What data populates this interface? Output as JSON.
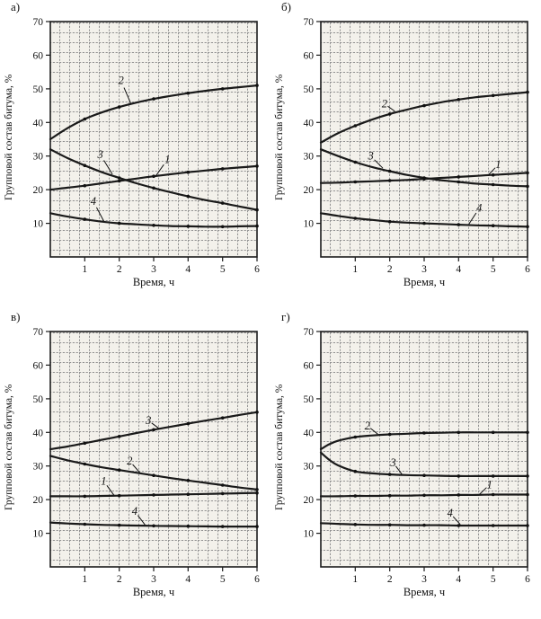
{
  "style": {
    "paper_color": "#f3f1eb",
    "grid_color": "#929292",
    "curve_color": "#1a1a1a",
    "axis_color": "#1c1c1c"
  },
  "panels": [
    {
      "letter": "а)",
      "ylabel": "Групповой состав битума, %",
      "xlabel": "Время, ч"
    },
    {
      "letter": "б)",
      "ylabel": "Групповой состав битума, %",
      "xlabel": "Время, ч"
    },
    {
      "letter": "в)",
      "ylabel": "Групповой состав битума, %",
      "xlabel": "Время, ч"
    },
    {
      "letter": "г)",
      "ylabel": "Групповой состав битума, %",
      "xlabel": "Время, ч"
    }
  ],
  "chart_data": [
    {
      "type": "line",
      "panel": "а)",
      "xlabel": "Время, ч",
      "ylabel": "Групповой состав битума, %",
      "xlim": [
        0,
        6
      ],
      "ylim": [
        0,
        70
      ],
      "x_ticks": [
        1,
        2,
        3,
        4,
        5,
        6
      ],
      "y_ticks": [
        10,
        20,
        30,
        40,
        50,
        60,
        70
      ],
      "grid": true,
      "series": [
        {
          "name": "2",
          "points": [
            [
              0,
              35
            ],
            [
              0.5,
              38.3
            ],
            [
              1,
              41
            ],
            [
              1.5,
              43
            ],
            [
              2,
              44.6
            ],
            [
              2.5,
              45.9
            ],
            [
              3,
              47
            ],
            [
              3.5,
              47.9
            ],
            [
              4,
              48.7
            ],
            [
              4.5,
              49.4
            ],
            [
              5,
              50
            ],
            [
              5.5,
              50.5
            ],
            [
              6,
              51
            ]
          ],
          "label_at": [
            2.05,
            52.5
          ],
          "leader_to": [
            2.35,
            45.3
          ]
        },
        {
          "name": "3",
          "points": [
            [
              0,
              32
            ],
            [
              0.5,
              29.4
            ],
            [
              1,
              27.2
            ],
            [
              1.5,
              25.2
            ],
            [
              2,
              23.5
            ],
            [
              2.5,
              21.9
            ],
            [
              3,
              20.5
            ],
            [
              3.5,
              19.2
            ],
            [
              4,
              18
            ],
            [
              4.5,
              16.9
            ],
            [
              5,
              16
            ],
            [
              5.5,
              15
            ],
            [
              6,
              14
            ]
          ],
          "label_at": [
            1.45,
            30.5
          ],
          "leader_to": [
            1.8,
            24.6
          ]
        },
        {
          "name": "1",
          "points": [
            [
              0,
              20
            ],
            [
              0.5,
              20.6
            ],
            [
              1,
              21.2
            ],
            [
              1.5,
              21.9
            ],
            [
              2,
              22.6
            ],
            [
              2.5,
              23.3
            ],
            [
              3,
              24
            ],
            [
              3.5,
              24.6
            ],
            [
              4,
              25.2
            ],
            [
              4.5,
              25.7
            ],
            [
              5,
              26.2
            ],
            [
              5.5,
              26.6
            ],
            [
              6,
              27
            ]
          ],
          "label_at": [
            3.4,
            29
          ],
          "leader_to": [
            3.05,
            23.9
          ]
        },
        {
          "name": "4",
          "points": [
            [
              0,
              13
            ],
            [
              0.5,
              12
            ],
            [
              1,
              11.2
            ],
            [
              1.5,
              10.5
            ],
            [
              2,
              10
            ],
            [
              2.5,
              9.7
            ],
            [
              3,
              9.4
            ],
            [
              3.5,
              9.2
            ],
            [
              4,
              9.1
            ],
            [
              4.5,
              9
            ],
            [
              5,
              9
            ],
            [
              5.5,
              9.1
            ],
            [
              6,
              9.2
            ]
          ],
          "label_at": [
            1.25,
            16.5
          ],
          "leader_to": [
            1.55,
            10.7
          ]
        }
      ]
    },
    {
      "type": "line",
      "panel": "б)",
      "xlabel": "Время, ч",
      "ylabel": "Групповой состав битума, %",
      "xlim": [
        0,
        6
      ],
      "ylim": [
        0,
        70
      ],
      "x_ticks": [
        1,
        2,
        3,
        4,
        5,
        6
      ],
      "y_ticks": [
        10,
        20,
        30,
        40,
        50,
        60,
        70
      ],
      "grid": true,
      "series": [
        {
          "name": "2",
          "points": [
            [
              0,
              34
            ],
            [
              0.5,
              36.8
            ],
            [
              1,
              39
            ],
            [
              1.5,
              40.9
            ],
            [
              2,
              42.5
            ],
            [
              2.5,
              43.8
            ],
            [
              3,
              45
            ],
            [
              3.5,
              46
            ],
            [
              4,
              46.8
            ],
            [
              4.5,
              47.5
            ],
            [
              5,
              48
            ],
            [
              5.5,
              48.5
            ],
            [
              6,
              49
            ]
          ],
          "label_at": [
            1.85,
            45.5
          ],
          "leader_to": [
            2.15,
            43.3
          ]
        },
        {
          "name": "3",
          "points": [
            [
              0,
              32
            ],
            [
              0.5,
              30
            ],
            [
              1,
              28.2
            ],
            [
              1.5,
              26.7
            ],
            [
              2,
              25.5
            ],
            [
              2.5,
              24.4
            ],
            [
              3,
              23.5
            ],
            [
              3.5,
              22.8
            ],
            [
              4,
              22.3
            ],
            [
              4.5,
              21.8
            ],
            [
              5,
              21.5
            ],
            [
              5.5,
              21.2
            ],
            [
              6,
              21
            ]
          ],
          "label_at": [
            1.45,
            30
          ],
          "leader_to": [
            1.8,
            26.4
          ]
        },
        {
          "name": "1",
          "points": [
            [
              0,
              22
            ],
            [
              0.5,
              22.1
            ],
            [
              1,
              22.3
            ],
            [
              1.5,
              22.5
            ],
            [
              2,
              22.7
            ],
            [
              2.5,
              22.9
            ],
            [
              3,
              23.2
            ],
            [
              3.5,
              23.5
            ],
            [
              4,
              23.8
            ],
            [
              4.5,
              24.1
            ],
            [
              5,
              24.4
            ],
            [
              5.5,
              24.7
            ],
            [
              6,
              25
            ]
          ],
          "label_at": [
            5.15,
            27.5
          ],
          "leader_to": [
            4.85,
            24.2
          ]
        },
        {
          "name": "4",
          "points": [
            [
              0,
              13
            ],
            [
              0.5,
              12.2
            ],
            [
              1,
              11.5
            ],
            [
              1.5,
              11
            ],
            [
              2,
              10.5
            ],
            [
              2.5,
              10.2
            ],
            [
              3,
              10
            ],
            [
              3.5,
              9.8
            ],
            [
              4,
              9.6
            ],
            [
              4.5,
              9.4
            ],
            [
              5,
              9.3
            ],
            [
              5.5,
              9.1
            ],
            [
              6,
              9
            ]
          ],
          "label_at": [
            4.6,
            14.5
          ],
          "leader_to": [
            4.3,
            9.8
          ]
        }
      ]
    },
    {
      "type": "line",
      "panel": "в)",
      "xlabel": "Время, ч",
      "ylabel": "Групповой состав битума, %",
      "xlim": [
        0,
        6
      ],
      "ylim": [
        0,
        70
      ],
      "x_ticks": [
        1,
        2,
        3,
        4,
        5,
        6
      ],
      "y_ticks": [
        10,
        20,
        30,
        40,
        50,
        60,
        70
      ],
      "grid": true,
      "series": [
        {
          "name": "3",
          "points": [
            [
              0,
              35
            ],
            [
              0.5,
              35.8
            ],
            [
              1,
              36.8
            ],
            [
              1.5,
              37.8
            ],
            [
              2,
              38.8
            ],
            [
              2.5,
              39.8
            ],
            [
              3,
              40.8
            ],
            [
              3.5,
              41.7
            ],
            [
              4,
              42.6
            ],
            [
              4.5,
              43.5
            ],
            [
              5,
              44.3
            ],
            [
              5.5,
              45.2
            ],
            [
              6,
              46
            ]
          ],
          "label_at": [
            2.85,
            43.5
          ],
          "leader_to": [
            3.15,
            41.2
          ]
        },
        {
          "name": "2",
          "points": [
            [
              0,
              33
            ],
            [
              0.5,
              31.7
            ],
            [
              1,
              30.6
            ],
            [
              1.5,
              29.6
            ],
            [
              2,
              28.8
            ],
            [
              2.5,
              28
            ],
            [
              3,
              27.2
            ],
            [
              3.5,
              26.4
            ],
            [
              4,
              25.7
            ],
            [
              4.5,
              25
            ],
            [
              5,
              24.3
            ],
            [
              5.5,
              23.6
            ],
            [
              6,
              23
            ]
          ],
          "label_at": [
            2.3,
            31.5
          ],
          "leader_to": [
            2.6,
            28
          ]
        },
        {
          "name": "1",
          "points": [
            [
              0,
              21
            ],
            [
              0.5,
              21
            ],
            [
              1,
              21
            ],
            [
              1.5,
              21.1
            ],
            [
              2,
              21.2
            ],
            [
              2.5,
              21.3
            ],
            [
              3,
              21.4
            ],
            [
              3.5,
              21.5
            ],
            [
              4,
              21.6
            ],
            [
              4.5,
              21.7
            ],
            [
              5,
              21.8
            ],
            [
              5.5,
              21.9
            ],
            [
              6,
              22
            ]
          ],
          "label_at": [
            1.55,
            25.5
          ],
          "leader_to": [
            1.85,
            21.3
          ]
        },
        {
          "name": "4",
          "points": [
            [
              0,
              13.2
            ],
            [
              0.5,
              12.9
            ],
            [
              1,
              12.7
            ],
            [
              1.5,
              12.5
            ],
            [
              2,
              12.4
            ],
            [
              2.5,
              12.3
            ],
            [
              3,
              12.2
            ],
            [
              3.5,
              12.15
            ],
            [
              4,
              12.1
            ],
            [
              4.5,
              12.05
            ],
            [
              5,
              12
            ],
            [
              5.5,
              12
            ],
            [
              6,
              12
            ]
          ],
          "label_at": [
            2.45,
            16.5
          ],
          "leader_to": [
            2.75,
            12.5
          ]
        }
      ]
    },
    {
      "type": "line",
      "panel": "г)",
      "xlabel": "Время, ч",
      "ylabel": "Групповой состав битума, %",
      "xlim": [
        0,
        6
      ],
      "ylim": [
        0,
        70
      ],
      "x_ticks": [
        1,
        2,
        3,
        4,
        5,
        6
      ],
      "y_ticks": [
        10,
        20,
        30,
        40,
        50,
        60,
        70
      ],
      "grid": true,
      "series": [
        {
          "name": "2",
          "points": [
            [
              0,
              35
            ],
            [
              0.25,
              36.5
            ],
            [
              0.5,
              37.5
            ],
            [
              1,
              38.6
            ],
            [
              1.5,
              39.1
            ],
            [
              2,
              39.4
            ],
            [
              2.5,
              39.6
            ],
            [
              3,
              39.8
            ],
            [
              3.5,
              39.9
            ],
            [
              4,
              40
            ],
            [
              4.5,
              40
            ],
            [
              5,
              40
            ],
            [
              5.5,
              40
            ],
            [
              6,
              40
            ]
          ],
          "label_at": [
            1.35,
            42
          ],
          "leader_to": [
            1.65,
            39.5
          ]
        },
        {
          "name": "3",
          "points": [
            [
              0,
              34
            ],
            [
              0.25,
              31.8
            ],
            [
              0.5,
              30.2
            ],
            [
              1,
              28.4
            ],
            [
              1.5,
              27.8
            ],
            [
              2,
              27.5
            ],
            [
              2.5,
              27.3
            ],
            [
              3,
              27.2
            ],
            [
              3.5,
              27.1
            ],
            [
              4,
              27
            ],
            [
              4.5,
              27
            ],
            [
              5,
              27
            ],
            [
              5.5,
              27
            ],
            [
              6,
              27
            ]
          ],
          "label_at": [
            2.1,
            31
          ],
          "leader_to": [
            2.35,
            27.6
          ]
        },
        {
          "name": "1",
          "points": [
            [
              0,
              21
            ],
            [
              0.5,
              21
            ],
            [
              1,
              21.1
            ],
            [
              1.5,
              21.1
            ],
            [
              2,
              21.2
            ],
            [
              2.5,
              21.2
            ],
            [
              3,
              21.3
            ],
            [
              3.5,
              21.3
            ],
            [
              4,
              21.4
            ],
            [
              4.5,
              21.4
            ],
            [
              5,
              21.5
            ],
            [
              5.5,
              21.5
            ],
            [
              6,
              21.5
            ]
          ],
          "label_at": [
            4.9,
            24.5
          ],
          "leader_to": [
            4.6,
            21.5
          ]
        },
        {
          "name": "4",
          "points": [
            [
              0,
              13
            ],
            [
              0.5,
              12.8
            ],
            [
              1,
              12.6
            ],
            [
              1.5,
              12.5
            ],
            [
              2,
              12.5
            ],
            [
              2.5,
              12.4
            ],
            [
              3,
              12.4
            ],
            [
              3.5,
              12.4
            ],
            [
              4,
              12.3
            ],
            [
              4.5,
              12.3
            ],
            [
              5,
              12.3
            ],
            [
              5.5,
              12.3
            ],
            [
              6,
              12.3
            ]
          ],
          "label_at": [
            3.75,
            16
          ],
          "leader_to": [
            4.05,
            12.6
          ]
        }
      ]
    }
  ]
}
